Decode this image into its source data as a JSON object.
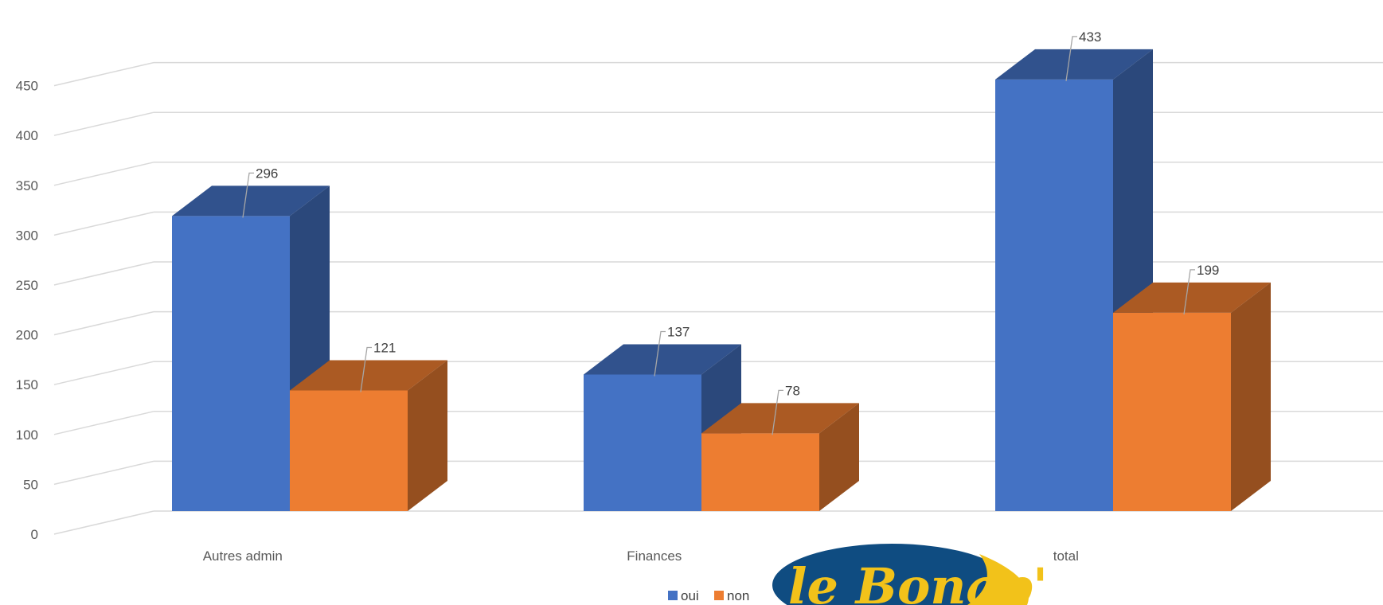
{
  "chart_data": {
    "type": "bar",
    "title": "",
    "xlabel": "",
    "ylabel": "",
    "categories": [
      "Autres admin",
      "Finances",
      "total"
    ],
    "series": [
      {
        "name": "oui",
        "values": [
          296,
          137,
          433
        ],
        "color": "#4472C4"
      },
      {
        "name": "non",
        "values": [
          121,
          78,
          199
        ],
        "color": "#ED7D31"
      }
    ],
    "ylim": [
      0,
      450
    ],
    "yticks": [
      0,
      50,
      100,
      150,
      200,
      250,
      300,
      350,
      400,
      450
    ],
    "grid": true,
    "style": "3d-clustered-column",
    "legend_position": "bottom"
  },
  "logo": {
    "text": "le Bonap'",
    "colors": {
      "oval": "#0F4C81",
      "text": "#F2C21A",
      "accent": "#F2C21A"
    }
  }
}
